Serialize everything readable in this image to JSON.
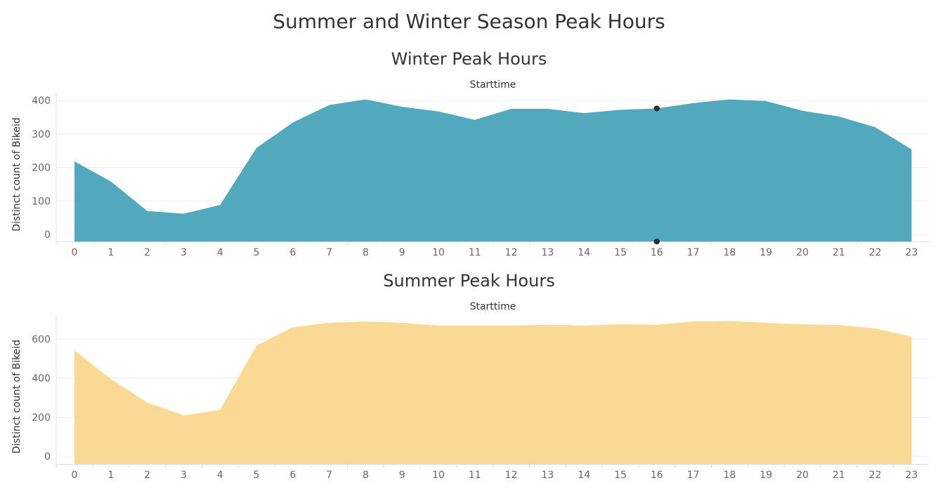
{
  "title": "Summer and Winter Season Peak Hours",
  "chart_data": [
    {
      "type": "area",
      "title": "Winter Peak Hours",
      "xlabel": "Starttime",
      "ylabel": "Distinct count of Bikeid",
      "x": [
        0,
        1,
        2,
        3,
        4,
        5,
        6,
        7,
        8,
        9,
        10,
        11,
        12,
        13,
        14,
        15,
        16,
        17,
        18,
        19,
        20,
        21,
        22,
        23
      ],
      "values": [
        218,
        158,
        70,
        62,
        88,
        258,
        334,
        386,
        403,
        381,
        367,
        342,
        375,
        375,
        362,
        372,
        376,
        392,
        403,
        398,
        369,
        352,
        320,
        254
      ],
      "ylim": [
        0,
        400
      ],
      "yticks": [
        0,
        100,
        200,
        300,
        400
      ],
      "color": "#52a8bd",
      "highlight_x": 16,
      "marker_color": "#333333"
    },
    {
      "type": "area",
      "title": "Summer Peak Hours",
      "xlabel": "Starttime",
      "ylabel": "Distinct count of Bikeid",
      "x": [
        0,
        1,
        2,
        3,
        4,
        5,
        6,
        7,
        8,
        9,
        10,
        11,
        12,
        13,
        14,
        15,
        16,
        17,
        18,
        19,
        20,
        21,
        22,
        23
      ],
      "values": [
        542,
        395,
        275,
        209,
        238,
        566,
        660,
        683,
        690,
        683,
        669,
        669,
        669,
        673,
        669,
        676,
        673,
        690,
        692,
        683,
        675,
        672,
        655,
        612
      ],
      "ylim": [
        0,
        600
      ],
      "yticks": [
        0,
        200,
        400,
        600
      ],
      "color": "#f9d994"
    }
  ]
}
